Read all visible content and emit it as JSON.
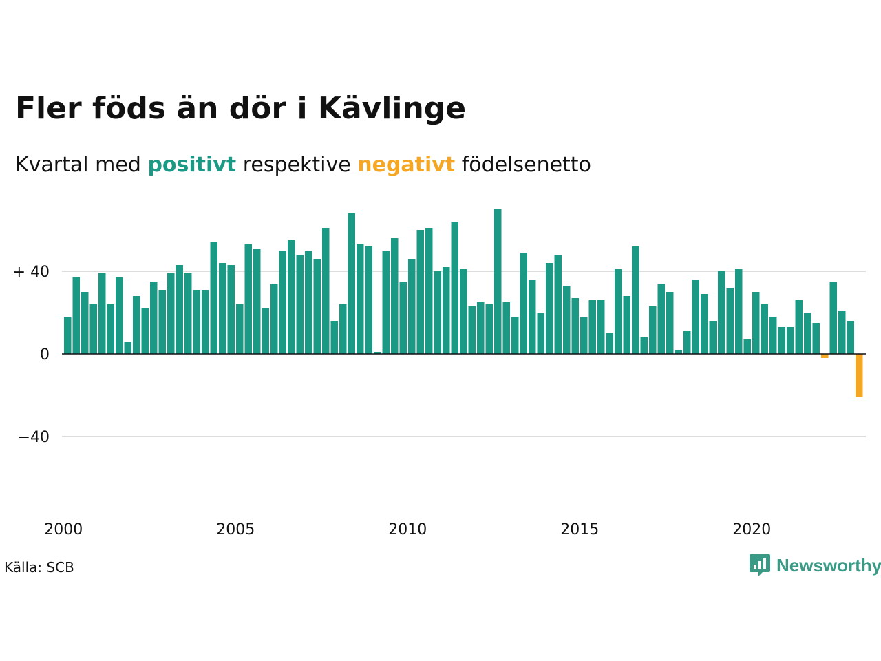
{
  "title": "Fler föds än dör i Kävlinge",
  "subtitle": {
    "prefix": "Kvartal med",
    "positive_word": "positivt",
    "middle": "respektive",
    "negative_word": "negativt",
    "suffix": "födelsenetto"
  },
  "colors": {
    "positive": "#1a9a85",
    "negative": "#f5a623",
    "grid": "#dddddd",
    "text": "#111111"
  },
  "source": "Källa: SCB",
  "brand": {
    "name": "Newsworthy",
    "icon": "newsworthy-logo-icon",
    "color": "#3a9a86"
  },
  "chart_data": {
    "type": "bar",
    "frequency": "quarterly",
    "x_start": "2000 Q1",
    "x_tick_labels": [
      "2000",
      "2005",
      "2010",
      "2015",
      "2020"
    ],
    "y_tick_labels": [
      "+ 40",
      "0",
      "−40"
    ],
    "y_ticks": [
      40,
      0,
      -40
    ],
    "ylim": [
      -70,
      72
    ],
    "grid": true,
    "values": [
      18,
      37,
      30,
      24,
      39,
      24,
      37,
      6,
      28,
      22,
      35,
      31,
      39,
      43,
      39,
      31,
      31,
      54,
      44,
      43,
      24,
      53,
      51,
      22,
      34,
      50,
      55,
      48,
      50,
      46,
      61,
      16,
      24,
      68,
      53,
      52,
      1,
      50,
      56,
      35,
      46,
      60,
      61,
      40,
      42,
      64,
      41,
      23,
      25,
      24,
      70,
      25,
      18,
      49,
      36,
      20,
      44,
      48,
      33,
      27,
      18,
      26,
      26,
      10,
      41,
      28,
      52,
      8,
      23,
      34,
      30,
      2,
      11,
      36,
      29,
      16,
      40,
      32,
      41,
      7,
      30,
      24,
      18,
      13,
      13,
      26,
      20,
      15,
      -2,
      35,
      21,
      16,
      -21
    ]
  }
}
